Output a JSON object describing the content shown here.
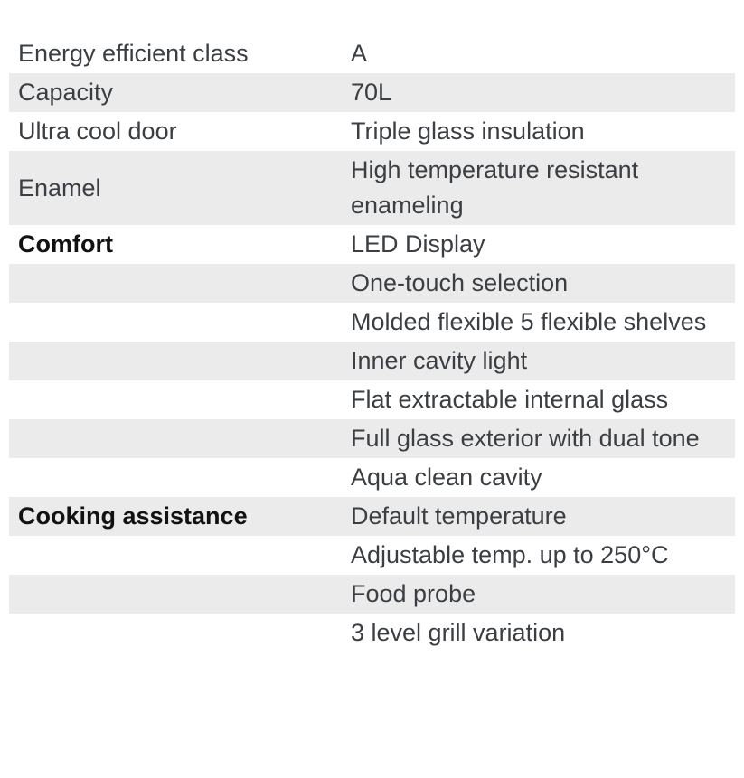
{
  "colors": {
    "row_alt_bg": "#ebebeb",
    "text": "#3b3e42",
    "bold_text": "#121212"
  },
  "table": {
    "rows": [
      {
        "label": "Energy efficient class",
        "value": "A",
        "bold": false
      },
      {
        "label": "Capacity",
        "value": "70L",
        "bold": false
      },
      {
        "label": "Ultra cool door",
        "value": "Triple glass insulation",
        "bold": false
      },
      {
        "label": "Enamel",
        "value": "High temperature resistant enameling",
        "bold": false
      },
      {
        "label": "Comfort",
        "value": "LED Display",
        "bold": true
      },
      {
        "label": "",
        "value": "One-touch selection",
        "bold": false
      },
      {
        "label": "",
        "value": "Molded flexible 5 flexible shelves",
        "bold": false
      },
      {
        "label": "",
        "value": "Inner cavity light",
        "bold": false
      },
      {
        "label": "",
        "value": "Flat extractable internal glass",
        "bold": false
      },
      {
        "label": "",
        "value": "Full glass exterior with dual tone",
        "bold": false
      },
      {
        "label": "",
        "value": "Aqua clean cavity",
        "bold": false
      },
      {
        "label": "Cooking assistance",
        "value": "Default temperature",
        "bold": true
      },
      {
        "label": "",
        "value": "Adjustable temp. up to 250°C",
        "bold": false
      },
      {
        "label": "",
        "value": "Food probe",
        "bold": false
      },
      {
        "label": "",
        "value": "3 level grill variation",
        "bold": false
      }
    ]
  }
}
